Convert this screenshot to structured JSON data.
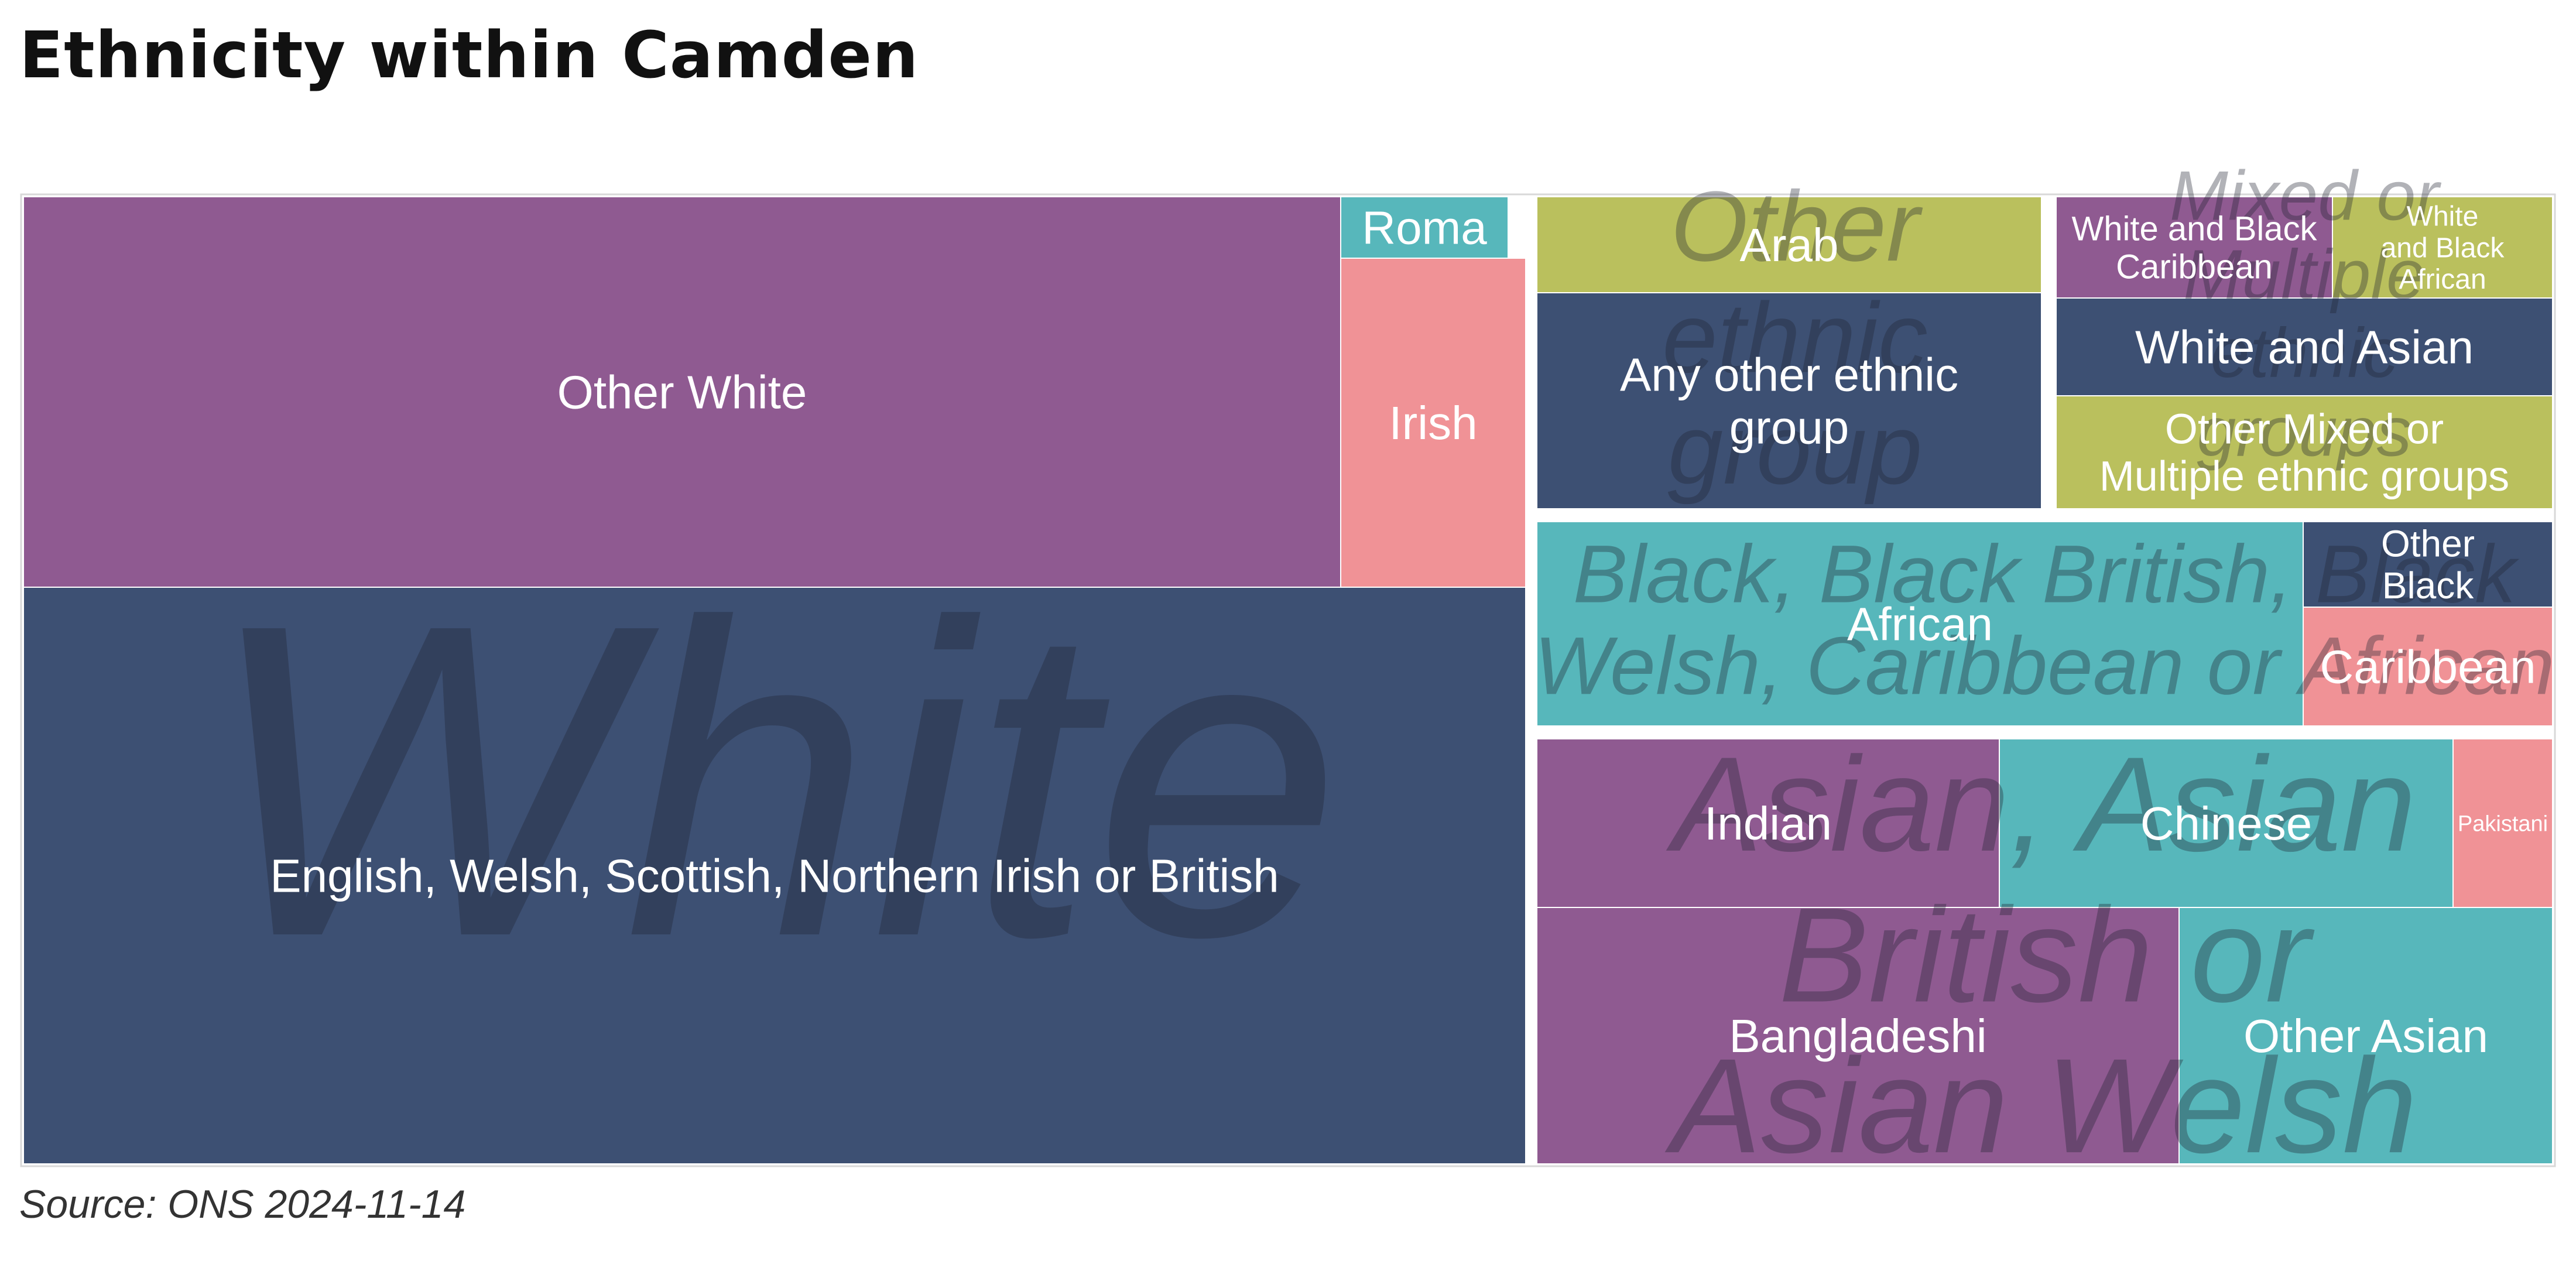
{
  "title": "Ethnicity within Camden",
  "source": "Source: ONS 2024-11-14",
  "colors": {
    "purple": "#8f5a91",
    "navy": "#3d5073",
    "teal": "#57b7bb",
    "pink": "#f09296",
    "olive": "#bac05d",
    "group_label": "#1f2230",
    "frame": "#d8d8d8"
  },
  "chart_data": {
    "type": "treemap",
    "groups": [
      {
        "name": "White",
        "categories": [
          {
            "name": "English, Welsh, Scottish, Northern Irish or British",
            "value": 42.3
          },
          {
            "name": "Other White",
            "value": 20.2
          },
          {
            "name": "Irish",
            "value": 2.6
          },
          {
            "name": "Roma",
            "value": 0.2
          }
        ]
      },
      {
        "name": "Other ethnic group",
        "categories": [
          {
            "name": "Any other ethnic group",
            "value": 2.8
          },
          {
            "name": "Arab",
            "value": 1.2
          }
        ]
      },
      {
        "name": "Mixed or Multiple ethnic groups",
        "categories": [
          {
            "name": "White and Black Caribbean",
            "value": 0.8
          },
          {
            "name": "White and Black African",
            "value": 0.7
          },
          {
            "name": "White and Asian",
            "value": 1.4
          },
          {
            "name": "Other Mixed or Multiple ethnic groups",
            "value": 1.8
          }
        ]
      },
      {
        "name": "Black, Black British, Black Welsh, Caribbean or African",
        "categories": [
          {
            "name": "African",
            "value": 5.0
          },
          {
            "name": "Other Black",
            "value": 0.7
          },
          {
            "name": "Caribbean",
            "value": 1.0
          }
        ]
      },
      {
        "name": "Asian, Asian British or Asian Welsh",
        "categories": [
          {
            "name": "Indian",
            "value": 2.5
          },
          {
            "name": "Chinese",
            "value": 2.5
          },
          {
            "name": "Pakistani",
            "value": 0.5
          },
          {
            "name": "Bangladeshi",
            "value": 5.9
          },
          {
            "name": "Other Asian",
            "value": 3.2
          }
        ]
      }
    ]
  }
}
